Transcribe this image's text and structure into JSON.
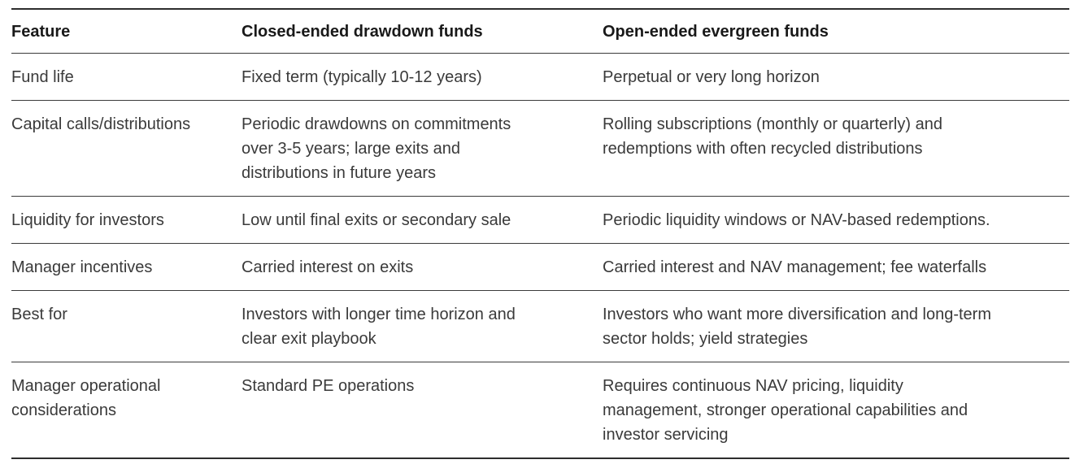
{
  "table": {
    "columns": [
      {
        "label": "Feature"
      },
      {
        "label": "Closed-ended drawdown funds"
      },
      {
        "label": "Open-ended evergreen funds"
      }
    ],
    "rows": [
      {
        "feature": "Fund life",
        "closed": "Fixed term (typically 10-12 years)",
        "open": "Perpetual or very long horizon"
      },
      {
        "feature": "Capital calls/distributions",
        "closed": "Periodic drawdowns on commitments\nover 3-5 years; large exits and\ndistributions in future years",
        "open": "Rolling subscriptions (monthly or quarterly) and\nredemptions with often recycled distributions"
      },
      {
        "feature": "Liquidity for investors",
        "closed": "Low until final exits or secondary sale",
        "open": "Periodic liquidity windows or NAV-based redemptions."
      },
      {
        "feature": "Manager incentives",
        "closed": "Carried interest on exits",
        "open": "Carried interest and NAV management; fee waterfalls"
      },
      {
        "feature": "Best for",
        "closed": "Investors with longer time horizon and\nclear exit playbook",
        "open": "Investors who want more diversification and long-term\nsector holds; yield strategies"
      },
      {
        "feature": "Manager operational\nconsiderations",
        "closed": "Standard PE operations",
        "open": "Requires continuous NAV pricing, liquidity\nmanagement, stronger operational capabilities and\ninvestor servicing"
      }
    ]
  },
  "colors": {
    "background": "#ffffff",
    "outer_rule": "#2d2d2d",
    "inner_rule": "#3b3b3b",
    "header_text": "#191919",
    "body_text": "#3a3a3a"
  }
}
